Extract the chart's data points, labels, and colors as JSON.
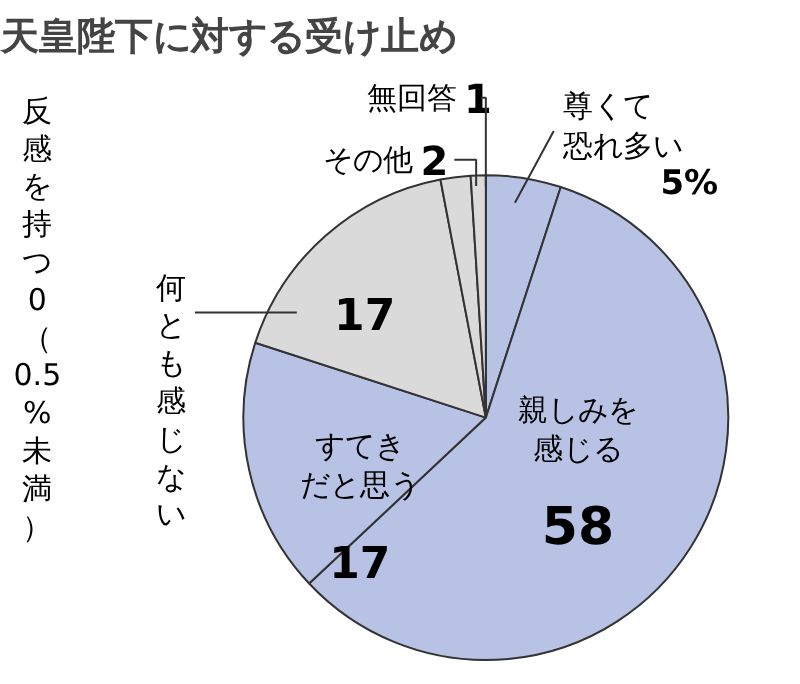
{
  "chart_data": {
    "type": "pie",
    "title": "天皇陛下に対する受け止め",
    "categories": [
      "尊くて恐れ多い",
      "親しみを感じる",
      "すてきだと思う",
      "何とも感じない",
      "その他",
      "無回答",
      "反感を持つ"
    ],
    "values": [
      5,
      58,
      17,
      17,
      2,
      1,
      0
    ],
    "colors": [
      "#b7c2e4",
      "#b7c2e4",
      "#b7c2e4",
      "#dadada",
      "#dadada",
      "#dadada",
      "#dadada"
    ],
    "value_labels": [
      "5%",
      "58",
      "17",
      "17",
      "2",
      "1",
      "0（0.5%未満）"
    ]
  }
}
